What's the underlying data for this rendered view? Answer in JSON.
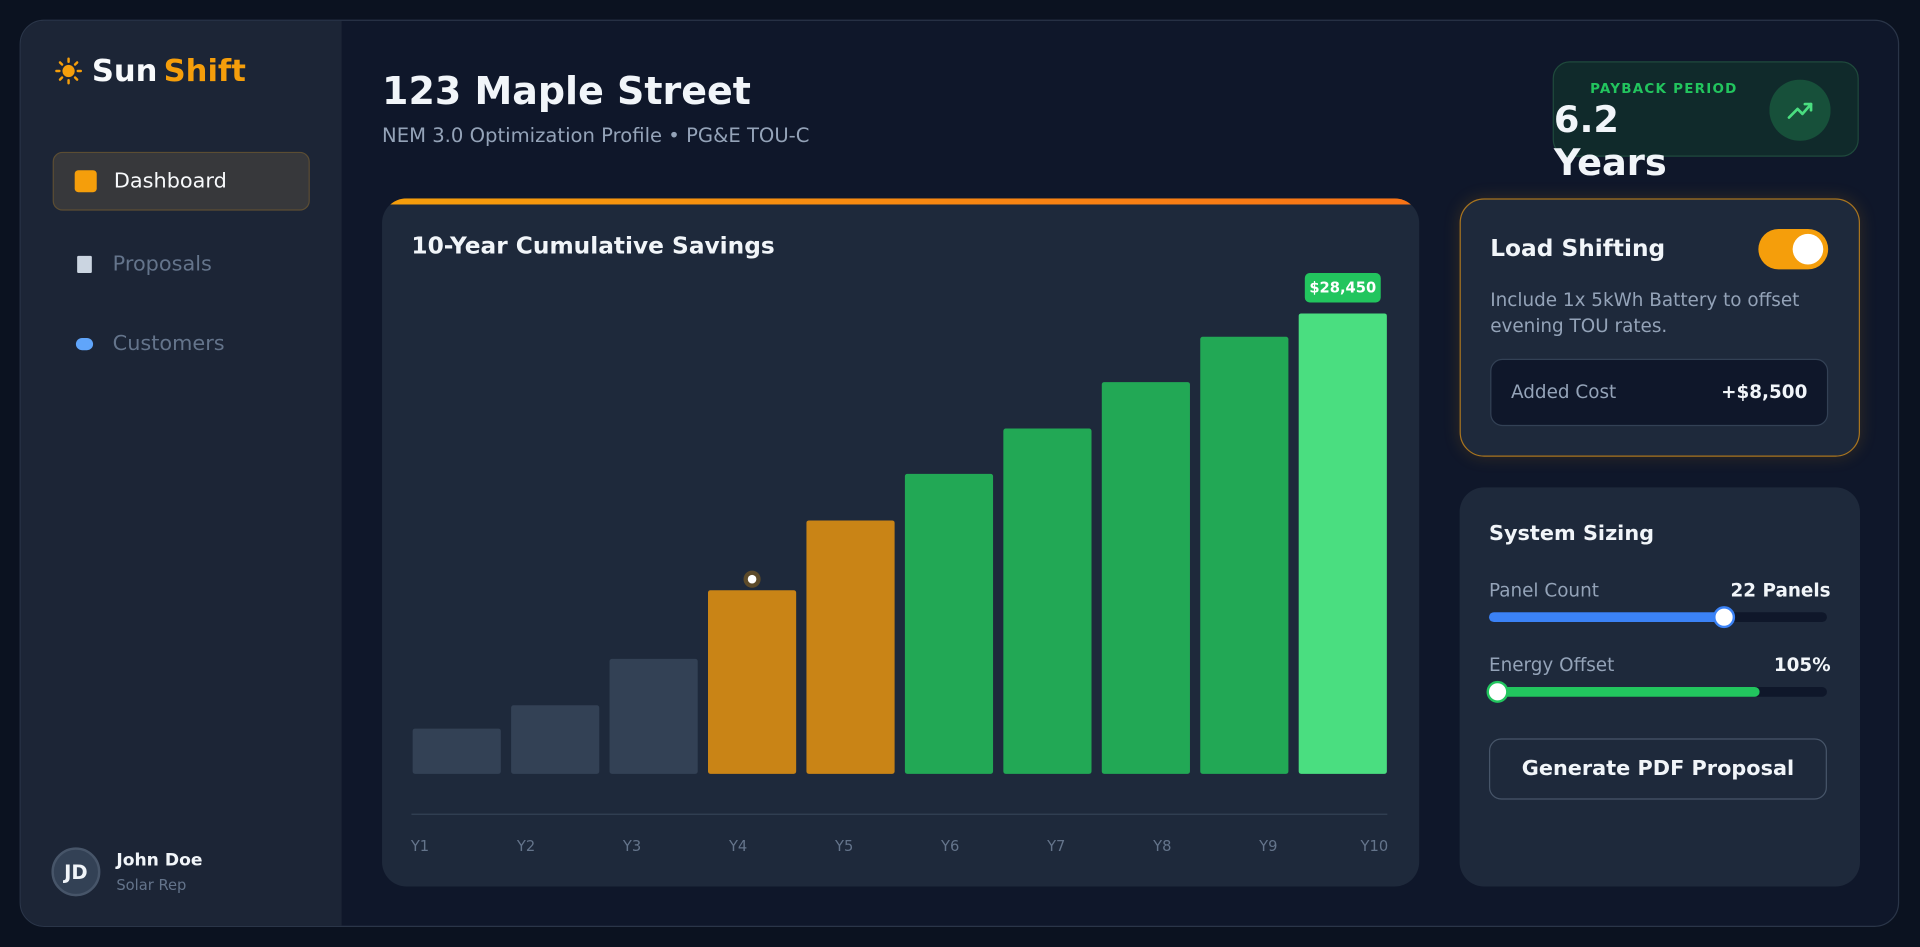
{
  "sidebar": {
    "brand": {
      "part1": "Sun",
      "part2": "Shift"
    },
    "nav": [
      "Dashboard",
      "Proposals",
      "Customers"
    ],
    "user": {
      "initials": "JD",
      "name": "John Doe",
      "role": "Solar Rep"
    }
  },
  "header": {
    "title": "123 Maple Street",
    "subtitle": "NEM 3.0 Optimization Profile • PG&E TOU-C",
    "payback": {
      "label": "PAYBACK PERIOD",
      "value": "6.2 Years"
    }
  },
  "chart_data": {
    "type": "bar",
    "title": "10-Year Cumulative Savings",
    "categories": [
      "Y1",
      "Y2",
      "Y3",
      "Y4",
      "Y5",
      "Y6",
      "Y7",
      "Y8",
      "Y9",
      "Y10"
    ],
    "values": [
      2800,
      4240,
      7110,
      11350,
      15660,
      18540,
      21340,
      24210,
      27010,
      28450
    ],
    "value_labels": [
      null,
      null,
      null,
      null,
      null,
      null,
      null,
      null,
      null,
      "$28,450"
    ],
    "colors": [
      "#334155",
      "#334155",
      "#334155",
      "#c98416",
      "#c98416",
      "#22a855",
      "#22a855",
      "#22a855",
      "#22a855",
      "#4ade80"
    ]
  },
  "load_shifting": {
    "title": "Load Shifting",
    "description": "Include 1x 5kWh Battery to offset evening TOU rates.",
    "cost_label": "Added Cost",
    "cost_value": "+$8,500"
  },
  "system_sizing": {
    "title": "System Sizing",
    "panel_label": "Panel Count",
    "panel_value": "22 Panels",
    "offset_label": "Energy Offset",
    "offset_value": "105%",
    "button": "Generate PDF Proposal"
  }
}
